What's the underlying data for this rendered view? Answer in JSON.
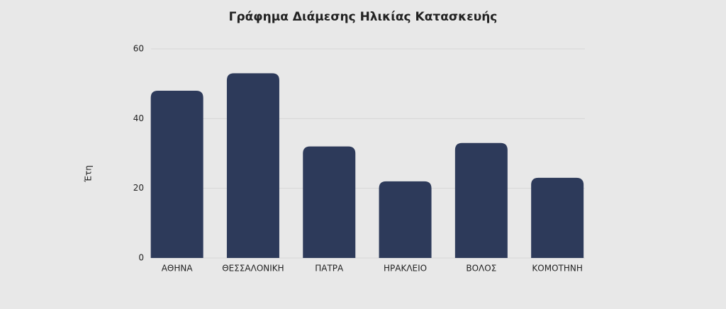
{
  "chart_data": {
    "type": "bar",
    "title": "Γράφημα Διάμεσης Ηλικίας Κατασκευής",
    "y_label": "Έτη",
    "categories": [
      "ΑΘΗΝΑ",
      "ΘΕΣΣΑΛΟΝΙΚΗ",
      "ΠΑΤΡΑ",
      "ΗΡΑΚΛΕΙΟ",
      "ΒΟΛΟΣ",
      "ΚΟΜΟΤΗΝΗ"
    ],
    "values": [
      48,
      53,
      32,
      22,
      33,
      23
    ],
    "color": "#2d3a5a",
    "ylim": [
      0,
      60
    ],
    "yticks": [
      0,
      20,
      40,
      60
    ],
    "grid": true
  }
}
